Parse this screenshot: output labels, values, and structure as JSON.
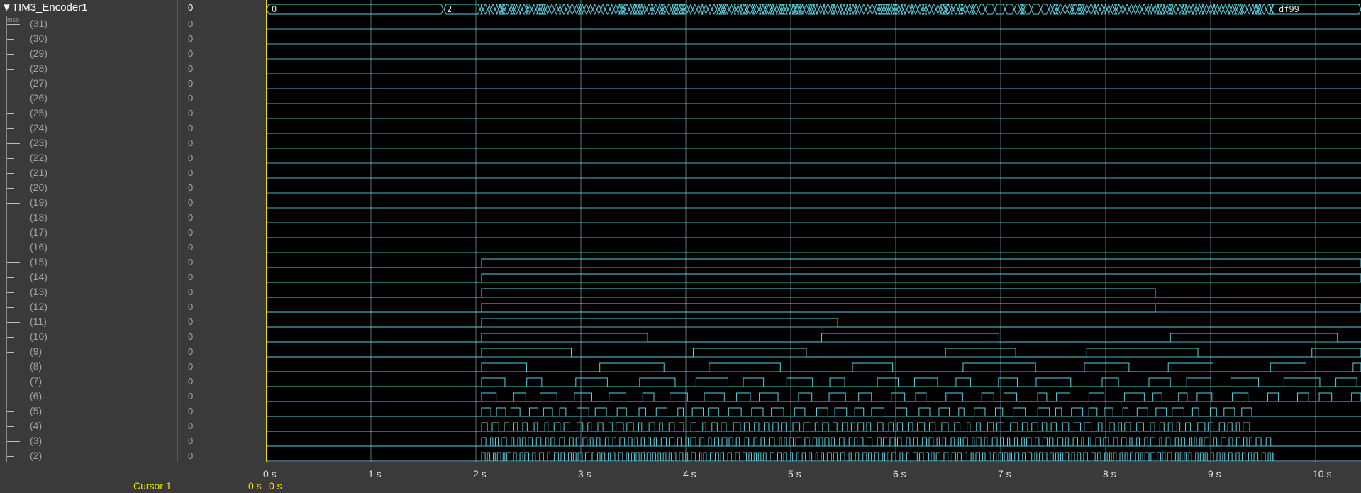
{
  "group": {
    "name": "TIM3_Encoder1",
    "value": "0",
    "msb_label": "msb"
  },
  "bits": [
    {
      "label": "(31)",
      "value": "0"
    },
    {
      "label": "(30)",
      "value": "0"
    },
    {
      "label": "(29)",
      "value": "0"
    },
    {
      "label": "(28)",
      "value": "0"
    },
    {
      "label": "(27)",
      "value": "0"
    },
    {
      "label": "(26)",
      "value": "0"
    },
    {
      "label": "(25)",
      "value": "0"
    },
    {
      "label": "(24)",
      "value": "0"
    },
    {
      "label": "(23)",
      "value": "0"
    },
    {
      "label": "(22)",
      "value": "0"
    },
    {
      "label": "(21)",
      "value": "0"
    },
    {
      "label": "(20)",
      "value": "0"
    },
    {
      "label": "(19)",
      "value": "0"
    },
    {
      "label": "(18)",
      "value": "0"
    },
    {
      "label": "(17)",
      "value": "0"
    },
    {
      "label": "(16)",
      "value": "0"
    },
    {
      "label": "(15)",
      "value": "0"
    },
    {
      "label": "(14)",
      "value": "0"
    },
    {
      "label": "(13)",
      "value": "0"
    },
    {
      "label": "(12)",
      "value": "0"
    },
    {
      "label": "(11)",
      "value": "0"
    },
    {
      "label": "(10)",
      "value": "0"
    },
    {
      "label": "(9)",
      "value": "0"
    },
    {
      "label": "(8)",
      "value": "0"
    },
    {
      "label": "(7)",
      "value": "0"
    },
    {
      "label": "(6)",
      "value": "0"
    },
    {
      "label": "(5)",
      "value": "0"
    },
    {
      "label": "(4)",
      "value": "0"
    },
    {
      "label": "(3)",
      "value": "0"
    },
    {
      "label": "(2)",
      "value": "0"
    }
  ],
  "bus_values": [
    "0",
    "2",
    "df99"
  ],
  "time_axis": {
    "labels": [
      "0 s",
      "1 s",
      "2 s",
      "3 s",
      "4 s",
      "5 s",
      "6 s",
      "7 s",
      "8 s",
      "9 s",
      "10 s"
    ]
  },
  "cursor": {
    "label": "Cursor 1",
    "time": "0 s",
    "box": "0 s"
  },
  "colors": {
    "wave": "#5ecfe0",
    "cursor": "#f0e000",
    "grid": "#3f5f6a",
    "panel": "#3a3a3a"
  }
}
